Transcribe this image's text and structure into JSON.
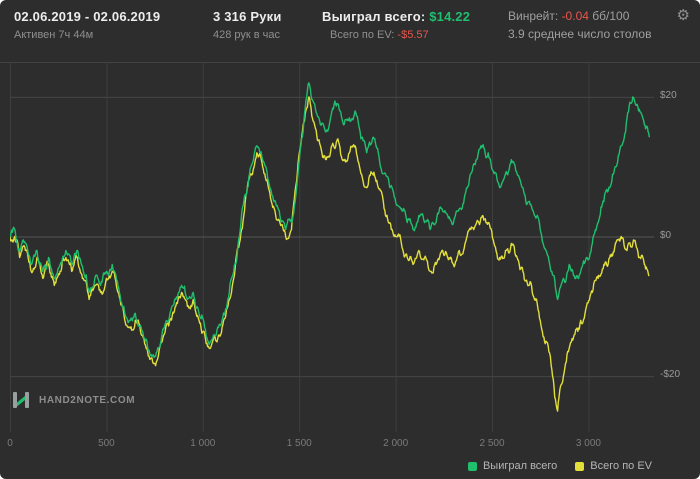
{
  "header": {
    "date_range": "02.06.2019 - 02.06.2019",
    "active_time": "Активен 7ч 44м",
    "hands": "3 316 Руки",
    "hands_per_hour": "428 рук в час",
    "won_label": "Выиграл всего:",
    "won_value": "$14.22",
    "ev_label": "Всего по EV:",
    "ev_value": "-$5.57",
    "winrate_label": "Винрейт:",
    "winrate_value": "-0.04",
    "winrate_units": "бб/100",
    "avg_tables": "3.9 среднее число столов"
  },
  "icons": {
    "settings": "⚙"
  },
  "footer": {
    "logo_text": "HAND2NOTE.COM"
  },
  "colors": {
    "background": "#2d2d2d",
    "grid": "#454545",
    "grid_zero": "#555555",
    "grid_vertical": "#3e3e3e",
    "green": "#1fbf6e",
    "yellow": "#e2df3a",
    "red": "#e8564b",
    "text_gray": "#8f8f8f"
  },
  "chart_data": {
    "type": "line",
    "title": "",
    "xlabel": "",
    "ylabel": "",
    "legend_position": "bottom-right",
    "grid": true,
    "xlim": [
      0,
      3340
    ],
    "ylim": [
      -28,
      25
    ],
    "x_tick_values": [
      0,
      500,
      1000,
      1500,
      2000,
      2500,
      3000
    ],
    "x_ticks": [
      "0",
      "500",
      "1 000",
      "1 500",
      "2 000",
      "2 500",
      "3 000"
    ],
    "y_tick_values": [
      20,
      0,
      -20
    ],
    "y_ticks": [
      "$20",
      "$0",
      "-$20"
    ],
    "series": [
      {
        "name": "Выиграл всего",
        "color": "#1fbf6e",
        "final_value": 14.22,
        "points": [
          [
            0,
            0
          ],
          [
            25,
            1
          ],
          [
            50,
            -2
          ],
          [
            80,
            -1
          ],
          [
            110,
            -4
          ],
          [
            140,
            -2
          ],
          [
            170,
            -5
          ],
          [
            200,
            -3
          ],
          [
            230,
            -6
          ],
          [
            260,
            -4
          ],
          [
            290,
            -2
          ],
          [
            320,
            -4
          ],
          [
            350,
            -2
          ],
          [
            380,
            -5
          ],
          [
            410,
            -8
          ],
          [
            440,
            -6
          ],
          [
            470,
            -7
          ],
          [
            500,
            -5
          ],
          [
            530,
            -4
          ],
          [
            560,
            -7
          ],
          [
            590,
            -10
          ],
          [
            620,
            -12
          ],
          [
            650,
            -11
          ],
          [
            680,
            -13
          ],
          [
            710,
            -15
          ],
          [
            740,
            -17
          ],
          [
            770,
            -16
          ],
          [
            800,
            -13
          ],
          [
            830,
            -11
          ],
          [
            860,
            -9
          ],
          [
            890,
            -7
          ],
          [
            920,
            -9
          ],
          [
            950,
            -8
          ],
          [
            980,
            -11
          ],
          [
            1010,
            -13
          ],
          [
            1040,
            -15
          ],
          [
            1070,
            -14
          ],
          [
            1100,
            -12
          ],
          [
            1130,
            -9
          ],
          [
            1160,
            -5
          ],
          [
            1190,
            0
          ],
          [
            1220,
            6
          ],
          [
            1250,
            10
          ],
          [
            1280,
            13
          ],
          [
            1310,
            11
          ],
          [
            1340,
            8
          ],
          [
            1370,
            5
          ],
          [
            1400,
            3
          ],
          [
            1430,
            1
          ],
          [
            1460,
            2
          ],
          [
            1490,
            8
          ],
          [
            1520,
            15
          ],
          [
            1550,
            22
          ],
          [
            1580,
            19
          ],
          [
            1610,
            16
          ],
          [
            1640,
            15
          ],
          [
            1670,
            18
          ],
          [
            1700,
            19
          ],
          [
            1730,
            16
          ],
          [
            1760,
            17
          ],
          [
            1790,
            18
          ],
          [
            1820,
            14
          ],
          [
            1850,
            12
          ],
          [
            1880,
            14
          ],
          [
            1910,
            12
          ],
          [
            1940,
            9
          ],
          [
            1970,
            7
          ],
          [
            2000,
            5
          ],
          [
            2030,
            4
          ],
          [
            2060,
            2
          ],
          [
            2090,
            1
          ],
          [
            2120,
            3
          ],
          [
            2150,
            2
          ],
          [
            2180,
            1
          ],
          [
            2210,
            2
          ],
          [
            2240,
            4
          ],
          [
            2270,
            3
          ],
          [
            2300,
            2
          ],
          [
            2330,
            4
          ],
          [
            2360,
            6
          ],
          [
            2390,
            9
          ],
          [
            2420,
            11
          ],
          [
            2450,
            13
          ],
          [
            2480,
            12
          ],
          [
            2510,
            9
          ],
          [
            2540,
            7
          ],
          [
            2570,
            9
          ],
          [
            2600,
            11
          ],
          [
            2630,
            9
          ],
          [
            2660,
            7
          ],
          [
            2690,
            5
          ],
          [
            2720,
            3
          ],
          [
            2750,
            1
          ],
          [
            2780,
            -2
          ],
          [
            2810,
            -5
          ],
          [
            2840,
            -9
          ],
          [
            2870,
            -6
          ],
          [
            2900,
            -4
          ],
          [
            2930,
            -6
          ],
          [
            2960,
            -5
          ],
          [
            2990,
            -3
          ],
          [
            3020,
            -1
          ],
          [
            3050,
            2
          ],
          [
            3080,
            5
          ],
          [
            3110,
            7
          ],
          [
            3140,
            10
          ],
          [
            3170,
            13
          ],
          [
            3200,
            17
          ],
          [
            3230,
            20
          ],
          [
            3260,
            18
          ],
          [
            3290,
            16
          ],
          [
            3316,
            14.22
          ]
        ]
      },
      {
        "name": "Всего по EV",
        "color": "#e2df3a",
        "final_value": -5.57,
        "points": [
          [
            0,
            0
          ],
          [
            25,
            0
          ],
          [
            50,
            -3
          ],
          [
            80,
            -2
          ],
          [
            110,
            -5
          ],
          [
            140,
            -3
          ],
          [
            170,
            -6
          ],
          [
            200,
            -4
          ],
          [
            230,
            -7
          ],
          [
            260,
            -5
          ],
          [
            290,
            -3
          ],
          [
            320,
            -5
          ],
          [
            350,
            -3
          ],
          [
            380,
            -6
          ],
          [
            410,
            -9
          ],
          [
            440,
            -7
          ],
          [
            470,
            -8
          ],
          [
            500,
            -6
          ],
          [
            530,
            -5
          ],
          [
            560,
            -8
          ],
          [
            590,
            -11
          ],
          [
            620,
            -13
          ],
          [
            650,
            -12
          ],
          [
            680,
            -14
          ],
          [
            710,
            -16
          ],
          [
            740,
            -18
          ],
          [
            770,
            -17
          ],
          [
            800,
            -14
          ],
          [
            830,
            -12
          ],
          [
            860,
            -10
          ],
          [
            890,
            -8
          ],
          [
            920,
            -10
          ],
          [
            950,
            -9
          ],
          [
            980,
            -12
          ],
          [
            1010,
            -14
          ],
          [
            1040,
            -16
          ],
          [
            1070,
            -15
          ],
          [
            1100,
            -13
          ],
          [
            1130,
            -10
          ],
          [
            1160,
            -6
          ],
          [
            1190,
            -1
          ],
          [
            1220,
            5
          ],
          [
            1250,
            9
          ],
          [
            1280,
            12
          ],
          [
            1310,
            10
          ],
          [
            1340,
            7
          ],
          [
            1370,
            4
          ],
          [
            1400,
            2
          ],
          [
            1430,
            0
          ],
          [
            1460,
            1
          ],
          [
            1490,
            9
          ],
          [
            1520,
            16
          ],
          [
            1550,
            20
          ],
          [
            1580,
            16
          ],
          [
            1610,
            13
          ],
          [
            1640,
            11
          ],
          [
            1670,
            13
          ],
          [
            1700,
            14
          ],
          [
            1730,
            11
          ],
          [
            1760,
            12
          ],
          [
            1790,
            13
          ],
          [
            1820,
            9
          ],
          [
            1850,
            7
          ],
          [
            1880,
            9
          ],
          [
            1910,
            7
          ],
          [
            1940,
            4
          ],
          [
            1970,
            2
          ],
          [
            2000,
            0
          ],
          [
            2030,
            -1
          ],
          [
            2060,
            -3
          ],
          [
            2090,
            -4
          ],
          [
            2120,
            -2
          ],
          [
            2150,
            -3
          ],
          [
            2180,
            -5
          ],
          [
            2210,
            -4
          ],
          [
            2240,
            -2
          ],
          [
            2270,
            -3
          ],
          [
            2300,
            -4
          ],
          [
            2330,
            -2
          ],
          [
            2360,
            -1
          ],
          [
            2390,
            1
          ],
          [
            2420,
            2
          ],
          [
            2450,
            3
          ],
          [
            2480,
            2
          ],
          [
            2510,
            -1
          ],
          [
            2540,
            -3
          ],
          [
            2570,
            -2
          ],
          [
            2600,
            -1
          ],
          [
            2630,
            -3
          ],
          [
            2660,
            -5
          ],
          [
            2690,
            -7
          ],
          [
            2720,
            -9
          ],
          [
            2750,
            -12
          ],
          [
            2780,
            -15
          ],
          [
            2810,
            -19
          ],
          [
            2840,
            -25
          ],
          [
            2870,
            -20
          ],
          [
            2900,
            -16
          ],
          [
            2930,
            -14
          ],
          [
            2960,
            -12
          ],
          [
            2990,
            -10
          ],
          [
            3020,
            -8
          ],
          [
            3050,
            -6
          ],
          [
            3080,
            -4
          ],
          [
            3110,
            -3
          ],
          [
            3140,
            -1
          ],
          [
            3170,
            0
          ],
          [
            3200,
            -2
          ],
          [
            3230,
            -1
          ],
          [
            3260,
            -3
          ],
          [
            3290,
            -4
          ],
          [
            3316,
            -5.57
          ]
        ]
      }
    ]
  }
}
